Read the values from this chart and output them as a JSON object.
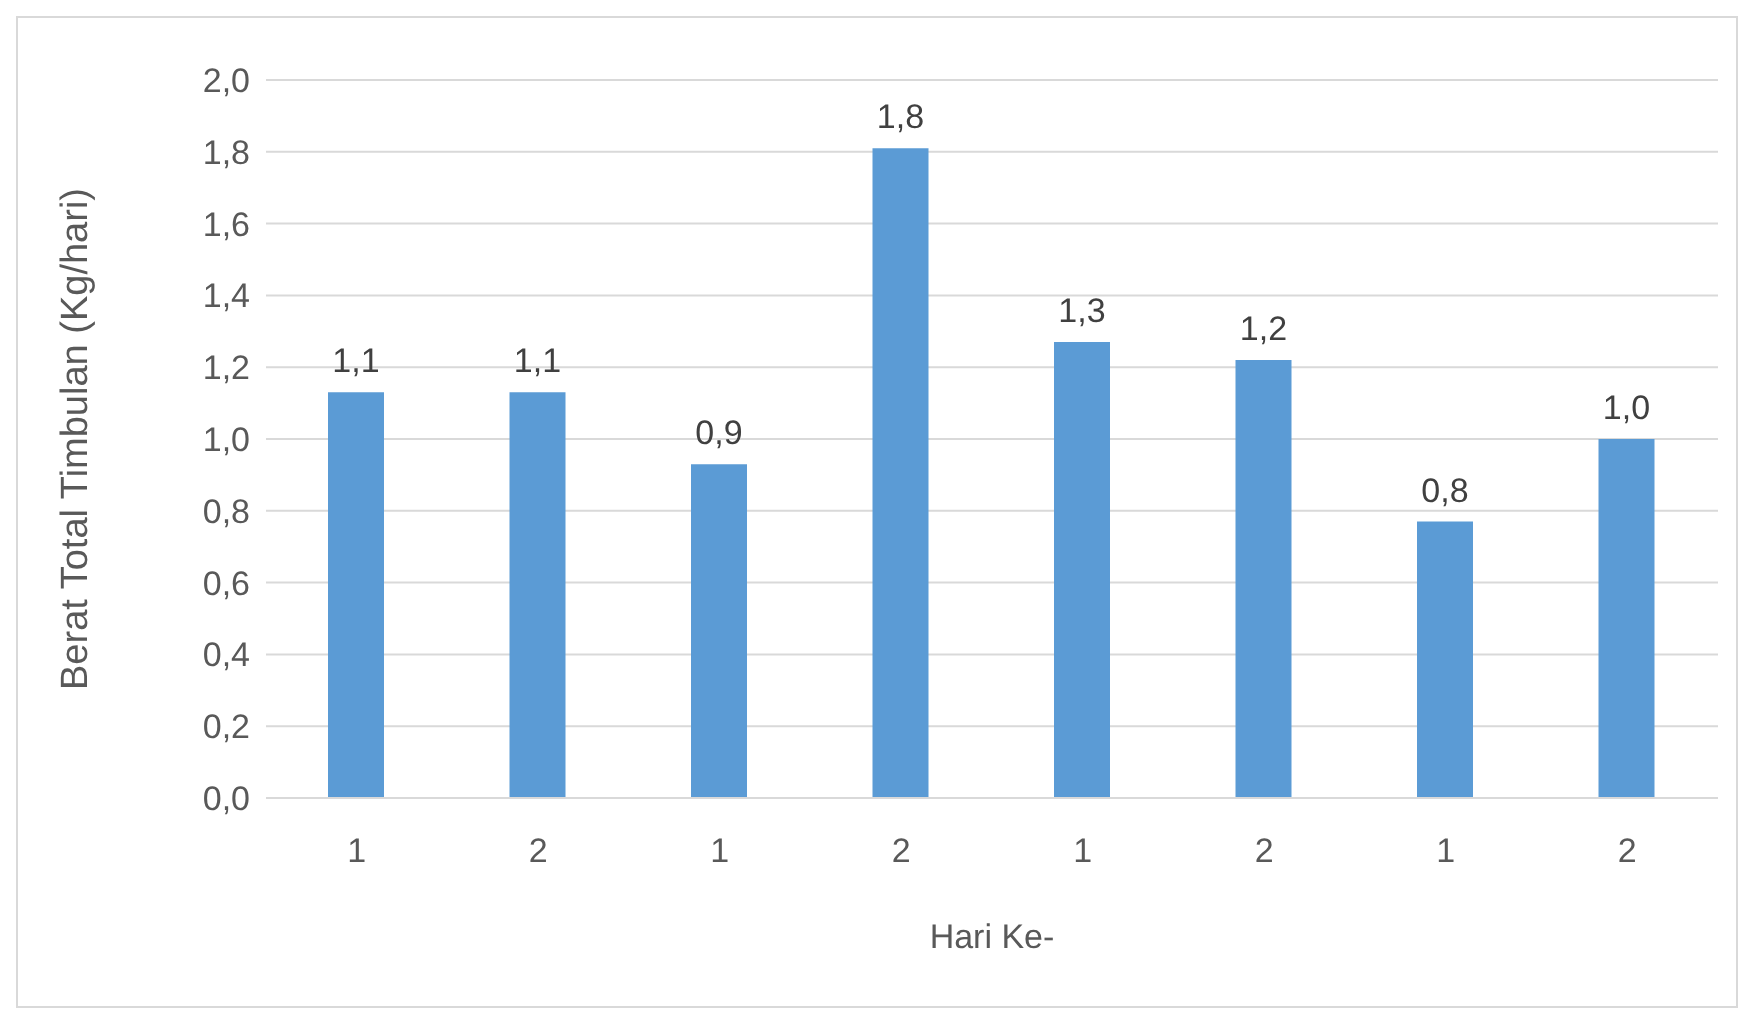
{
  "chart_data": {
    "type": "bar",
    "xlabel": "Hari Ke-",
    "ylabel": "Berat Total Timbulan (Kg/hari)",
    "categories": [
      "1",
      "2",
      "1",
      "2",
      "1",
      "2",
      "1",
      "2"
    ],
    "series": [
      {
        "color": "#5b9bd5",
        "values": [
          1.13,
          1.13,
          0.93,
          1.81,
          1.27,
          1.22,
          0.77,
          1.0
        ],
        "value_labels": [
          "1,1",
          "1,1",
          "0,9",
          "1,8",
          "1,3",
          "1,2",
          "0,8",
          "1,0"
        ]
      }
    ],
    "ylim": [
      0,
      2
    ],
    "yticks": [
      {
        "value": 0,
        "label": "0,0"
      },
      {
        "value": 0.2,
        "label": "0,2"
      },
      {
        "value": 0.4,
        "label": "0,4"
      },
      {
        "value": 0.6,
        "label": "0,6"
      },
      {
        "value": 0.8,
        "label": "0,8"
      },
      {
        "value": 1,
        "label": "1,0"
      },
      {
        "value": 1.2,
        "label": "1,2"
      },
      {
        "value": 1.4,
        "label": "1,4"
      },
      {
        "value": 1.6,
        "label": "1,6"
      },
      {
        "value": 1.8,
        "label": "1,8"
      },
      {
        "value": 2,
        "label": "2,0"
      }
    ],
    "grid": "y",
    "legend": false
  }
}
